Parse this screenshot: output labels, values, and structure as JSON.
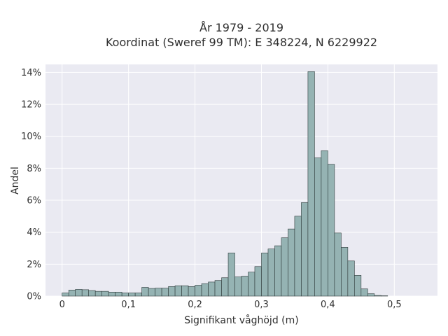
{
  "chart_data": {
    "type": "bar",
    "title_lines": [
      "År 1979 - 2019",
      "Koordinat (Sweref 99 TM): E 348224, N 6229922"
    ],
    "xlabel": "Signifikant våghöjd (m)",
    "ylabel": "Andel",
    "xlim": [
      -0.025,
      0.565
    ],
    "ylim": [
      0,
      14.5
    ],
    "x_ticks": [
      {
        "value": 0,
        "label": "0"
      },
      {
        "value": 0.1,
        "label": "0,1"
      },
      {
        "value": 0.2,
        "label": "0,2"
      },
      {
        "value": 0.3,
        "label": "0,3"
      },
      {
        "value": 0.4,
        "label": "0,4"
      },
      {
        "value": 0.5,
        "label": "0,5"
      }
    ],
    "y_ticks": [
      {
        "value": 0,
        "label": "0%"
      },
      {
        "value": 2,
        "label": "2%"
      },
      {
        "value": 4,
        "label": "4%"
      },
      {
        "value": 6,
        "label": "6%"
      },
      {
        "value": 8,
        "label": "8%"
      },
      {
        "value": 10,
        "label": "10%"
      },
      {
        "value": 12,
        "label": "12%"
      },
      {
        "value": 14,
        "label": "14%"
      }
    ],
    "grid": true,
    "bin_start": 0,
    "bin_width": 0.01,
    "values": [
      0.2,
      0.38,
      0.42,
      0.4,
      0.35,
      0.3,
      0.3,
      0.25,
      0.25,
      0.2,
      0.2,
      0.2,
      0.55,
      0.48,
      0.5,
      0.5,
      0.6,
      0.65,
      0.65,
      0.6,
      0.68,
      0.78,
      0.88,
      0.98,
      1.15,
      2.7,
      1.2,
      1.25,
      1.5,
      1.85,
      2.7,
      2.95,
      3.15,
      3.65,
      4.2,
      5.0,
      5.85,
      14.05,
      8.65,
      9.1,
      8.25,
      3.95,
      3.05,
      2.2,
      1.3,
      0.45,
      0.15,
      0.04,
      0.02
    ]
  },
  "colors": {
    "plot_background": "#eaeaf2",
    "grid": "#ffffff",
    "bar_fill": "#95b3b3",
    "bar_stroke": "#2e3a3a"
  }
}
